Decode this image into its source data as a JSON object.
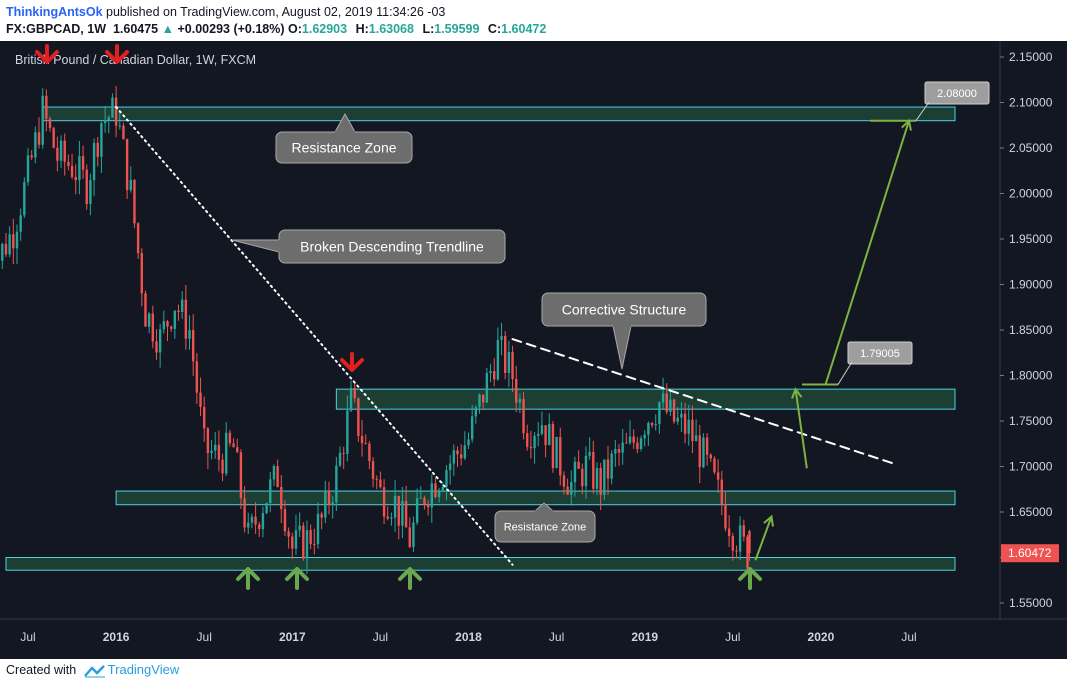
{
  "header": {
    "author": "ThinkingAntsOk",
    "published_text": " published on TradingView.com, August 02, 2019 11:34:26 -03",
    "symbol": "FX:GBPCAD, 1W",
    "last": "1.60475",
    "change": "+0.00293 (+0.18%)",
    "o_label": "O:",
    "o_value": "1.62903",
    "h_label": "H:",
    "h_value": "1.63068",
    "l_label": "L:",
    "l_value": "1.59599",
    "c_label": "C:",
    "c_value": "1.60472"
  },
  "footer": {
    "created_with": "Created with",
    "brand": "TradingView"
  },
  "colors": {
    "background": "#131722",
    "up": "#26a69a",
    "down": "#ef5350",
    "zone_fill": "#1e4536",
    "zone_stroke": "#4dd0e1",
    "arrow_red": "#e02020",
    "arrow_green": "#6aa84f",
    "projection": "#7cb342",
    "callout": "#6d6d6d",
    "price_tag": "#ef5350"
  },
  "chart_data": {
    "type": "candlestick",
    "title": "British Pound / Canadian Dollar, 1W, FXCM",
    "y_ticks": [
      "2.15000",
      "2.10000",
      "2.05000",
      "2.00000",
      "1.95000",
      "1.90000",
      "1.85000",
      "1.80000",
      "1.75000",
      "1.70000",
      "1.65000",
      "1.60000",
      "1.55000"
    ],
    "x_ticks": [
      "Jul",
      "2016",
      "Jul",
      "2017",
      "Jul",
      "2018",
      "Jul",
      "2019",
      "Jul",
      "2020",
      "Jul"
    ],
    "ylim": [
      1.52,
      2.16
    ],
    "last_price_label": "1.60472",
    "last_price": 1.60472,
    "zones": [
      {
        "from": 2.08,
        "to": 2.095,
        "t_start": "2015-08",
        "t_end": "2020-04"
      },
      {
        "from": 1.763,
        "to": 1.785,
        "t_start": "2017-04",
        "t_end": "2020-04"
      },
      {
        "from": 1.658,
        "to": 1.673,
        "t_start": "2016-01",
        "t_end": "2020-04"
      },
      {
        "from": 1.586,
        "to": 1.6,
        "t_start": "2015-05",
        "t_end": "2020-04"
      }
    ],
    "annotations": [
      {
        "name": "resistance-zone-top-callout",
        "text": "Resistance Zone"
      },
      {
        "name": "broken-trendline-callout",
        "text": "Broken Descending Trendline"
      },
      {
        "name": "corrective-structure-callout",
        "text": "Corrective Structure"
      },
      {
        "name": "resistance-zone-bottom-callout",
        "text": "Resistance Zone"
      }
    ],
    "price_labels": [
      {
        "name": "target-label-2",
        "text": "2.08000",
        "value": 2.08
      },
      {
        "name": "target-label-1",
        "text": "1.79005",
        "value": 1.79005
      }
    ],
    "trendlines": [
      {
        "name": "broken-descending-trendline",
        "style": "dotted",
        "from": [
          "2016-01",
          2.095
        ],
        "to": [
          "2018-04",
          1.592
        ]
      },
      {
        "name": "corrective-structure-line",
        "style": "dashed",
        "from": [
          "2018-04",
          1.84
        ],
        "to": [
          "2020-06",
          1.703
        ]
      }
    ],
    "projection_path": [
      [
        "2019-08",
        1.597
      ],
      [
        "2019-08",
        1.645
      ],
      [
        "2019-10",
        1.698
      ],
      [
        "2019-11",
        1.785
      ],
      [
        "2019-11",
        1.79005
      ],
      [
        "2020-07",
        2.08
      ]
    ],
    "red_arrows": [
      "2015-08",
      "2016-01",
      "2017-05"
    ],
    "green_arrows": [
      "2016-09",
      "2017-01",
      "2017-09",
      "2019-07"
    ],
    "candle_path": [
      [
        "2015-04",
        1.88
      ],
      [
        "2015-05",
        1.93
      ],
      [
        "2015-06",
        1.96
      ],
      [
        "2015-07",
        2.02
      ],
      [
        "2015-08",
        2.09
      ],
      [
        "2015-09",
        2.04
      ],
      [
        "2015-10",
        2.03
      ],
      [
        "2015-11",
        2.01
      ],
      [
        "2015-12",
        2.08
      ],
      [
        "2016-01",
        2.09
      ],
      [
        "2016-02",
        2.0
      ],
      [
        "2016-03",
        1.87
      ],
      [
        "2016-04",
        1.84
      ],
      [
        "2016-05",
        1.88
      ],
      [
        "2016-06",
        1.85
      ],
      [
        "2016-07",
        1.72
      ],
      [
        "2016-08",
        1.71
      ],
      [
        "2016-09",
        1.72
      ],
      [
        "2016-10",
        1.62
      ],
      [
        "2016-11",
        1.66
      ],
      [
        "2016-12",
        1.69
      ],
      [
        "2017-01",
        1.61
      ],
      [
        "2017-02",
        1.62
      ],
      [
        "2017-03",
        1.64
      ],
      [
        "2017-04",
        1.69
      ],
      [
        "2017-05",
        1.77
      ],
      [
        "2017-06",
        1.72
      ],
      [
        "2017-07",
        1.67
      ],
      [
        "2017-08",
        1.66
      ],
      [
        "2017-09",
        1.62
      ],
      [
        "2017-10",
        1.67
      ],
      [
        "2017-11",
        1.69
      ],
      [
        "2017-12",
        1.71
      ],
      [
        "2018-01",
        1.73
      ],
      [
        "2018-02",
        1.78
      ],
      [
        "2018-03",
        1.83
      ],
      [
        "2018-04",
        1.8
      ],
      [
        "2018-05",
        1.74
      ],
      [
        "2018-06",
        1.75
      ],
      [
        "2018-07",
        1.71
      ],
      [
        "2018-08",
        1.68
      ],
      [
        "2018-09",
        1.7
      ],
      [
        "2018-10",
        1.68
      ],
      [
        "2018-11",
        1.71
      ],
      [
        "2018-12",
        1.72
      ],
      [
        "2019-01",
        1.75
      ],
      [
        "2019-02",
        1.77
      ],
      [
        "2019-03",
        1.75
      ],
      [
        "2019-04",
        1.74
      ],
      [
        "2019-05",
        1.71
      ],
      [
        "2019-06",
        1.67
      ],
      [
        "2019-07",
        1.63
      ],
      [
        "2019-08",
        1.6047
      ]
    ]
  }
}
